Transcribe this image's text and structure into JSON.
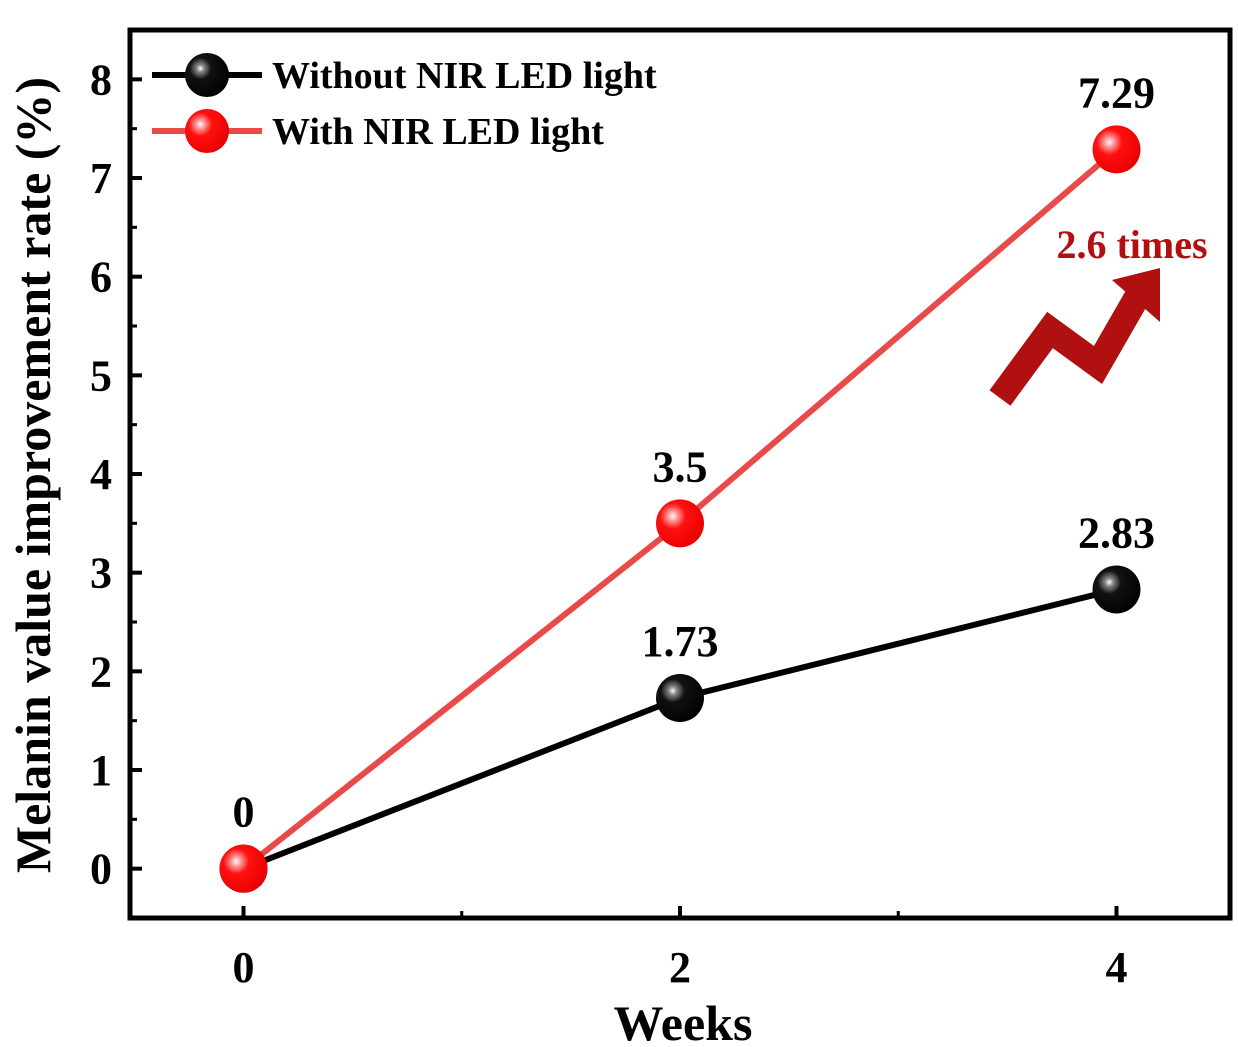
{
  "chart_data": {
    "type": "line",
    "title": "",
    "xlabel": "Weeks",
    "ylabel": "Melanin value improvement rate (%)",
    "x": [
      0,
      2,
      4
    ],
    "x_ticks": [
      "0",
      "2",
      "4"
    ],
    "y_ticks": [
      "0",
      "1",
      "2",
      "3",
      "4",
      "5",
      "6",
      "7",
      "8"
    ],
    "xlim": [
      -0.52,
      4.52
    ],
    "ylim": [
      -0.5,
      8.5
    ],
    "grid": false,
    "legend_position": "top-left",
    "series": [
      {
        "name": "Without NIR LED light",
        "color": "#000000",
        "line_color": "#000000",
        "values": [
          0,
          1.73,
          2.83
        ],
        "labels": [
          "",
          "1.73",
          "2.83"
        ]
      },
      {
        "name": "With NIR LED light",
        "color": "#ff0000",
        "line_color": "#e84a4a",
        "values": [
          0,
          3.5,
          7.29
        ],
        "labels": [
          "0",
          "3.5",
          "7.29"
        ]
      }
    ],
    "annotation": {
      "text": "2.6 times",
      "color": "#b01010",
      "icon": "trend-up-zigzag-arrow-icon"
    }
  }
}
